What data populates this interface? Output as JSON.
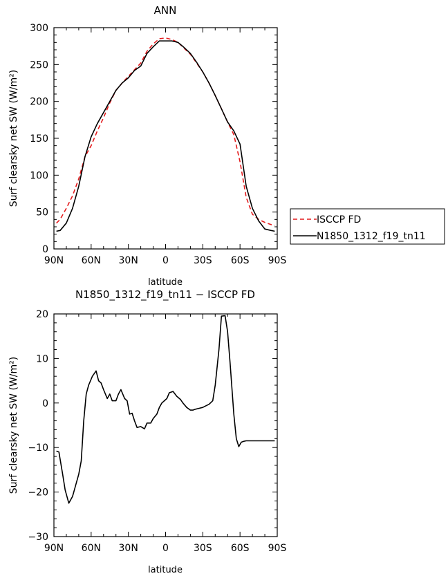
{
  "chart_data": [
    {
      "type": "line",
      "title": "ANN",
      "xlabel": "latitude",
      "ylabel": "Surf clearsky net SW (W/m²)",
      "xlim": [
        90,
        -90
      ],
      "ylim": [
        0,
        300
      ],
      "xticks": [
        90,
        60,
        30,
        0,
        -30,
        -60,
        -90
      ],
      "xtick_labels": [
        "90N",
        "60N",
        "30N",
        "0",
        "30S",
        "60S",
        "90S"
      ],
      "yticks": [
        0,
        50,
        100,
        150,
        200,
        250,
        300
      ],
      "ytick_labels": [
        "0",
        "50",
        "100",
        "150",
        "200",
        "250",
        "300"
      ],
      "legend_position": "right",
      "series": [
        {
          "name": "ISCCP FD",
          "color": "#e41a1c",
          "dash": "dashed",
          "x": [
            88,
            85,
            80,
            75,
            70,
            65,
            60,
            55,
            50,
            45,
            40,
            35,
            30,
            25,
            20,
            15,
            10,
            5,
            0,
            -5,
            -10,
            -15,
            -20,
            -25,
            -30,
            -35,
            -40,
            -45,
            -50,
            -55,
            -60,
            -65,
            -70,
            -75,
            -80,
            -85,
            -88
          ],
          "y": [
            35,
            40,
            55,
            72,
            95,
            125,
            140,
            160,
            178,
            198,
            215,
            225,
            234,
            243,
            252,
            268,
            278,
            285,
            286,
            284,
            280,
            272,
            264,
            252,
            240,
            225,
            208,
            190,
            172,
            155,
            118,
            70,
            47,
            40,
            36,
            33,
            32
          ]
        },
        {
          "name": "N1850_1312_f19_tn11",
          "color": "#000000",
          "dash": "solid",
          "x": [
            88,
            85,
            80,
            75,
            70,
            65,
            60,
            55,
            50,
            45,
            40,
            35,
            30,
            25,
            20,
            15,
            10,
            5,
            0,
            -5,
            -10,
            -15,
            -20,
            -25,
            -30,
            -35,
            -40,
            -45,
            -50,
            -55,
            -60,
            -65,
            -70,
            -75,
            -80,
            -85,
            -88
          ],
          "y": [
            24,
            25,
            35,
            55,
            85,
            125,
            152,
            170,
            185,
            200,
            215,
            225,
            232,
            242,
            248,
            265,
            274,
            282,
            282,
            282,
            280,
            273,
            265,
            253,
            240,
            225,
            208,
            190,
            172,
            160,
            142,
            85,
            55,
            38,
            27,
            25,
            24
          ]
        }
      ]
    },
    {
      "type": "line",
      "title": "N1850_1312_f19_tn11 − ISCCP FD",
      "xlabel": "latitude",
      "ylabel": "Surf clearsky net SW (W/m²)",
      "xlim": [
        90,
        -90
      ],
      "ylim": [
        -30,
        20
      ],
      "xticks": [
        90,
        60,
        30,
        0,
        -30,
        -60,
        -90
      ],
      "xtick_labels": [
        "90N",
        "60N",
        "30N",
        "0",
        "30S",
        "60S",
        "90S"
      ],
      "yticks": [
        -30,
        -20,
        -10,
        0,
        10,
        20
      ],
      "ytick_labels": [
        "−30",
        "−20",
        "−10",
        "0",
        "10",
        "20"
      ],
      "series": [
        {
          "color": "#000000",
          "dash": "solid",
          "x": [
            88,
            86,
            83,
            81,
            78,
            75,
            73,
            70,
            68,
            66,
            64,
            62,
            59,
            56,
            54,
            52,
            50,
            47,
            45,
            43,
            40,
            38,
            36,
            33,
            31,
            29,
            27,
            25,
            23,
            20,
            17,
            15,
            12,
            10,
            7,
            5,
            3,
            1,
            -1,
            -3,
            -6,
            -9,
            -12,
            -14,
            -17,
            -20,
            -22,
            -24,
            -27,
            -30,
            -32,
            -35,
            -38,
            -40,
            -43,
            -45,
            -48,
            -50,
            -52,
            -55,
            -57,
            -59,
            -61,
            -63,
            -65,
            -68,
            -70,
            -72,
            -75,
            -77,
            -80,
            -83,
            -85,
            -88
          ],
          "y": [
            -10.8,
            -11,
            -16,
            -19.5,
            -22.5,
            -21,
            -19,
            -16,
            -13,
            -4,
            2,
            4,
            6,
            7.2,
            5,
            4.5,
            3,
            1,
            2,
            0.5,
            0.5,
            2,
            3,
            1,
            0.5,
            -2.5,
            -2.3,
            -4,
            -5.5,
            -5.3,
            -5.8,
            -4.5,
            -4.5,
            -3.5,
            -2.5,
            -1,
            0,
            0.5,
            1,
            2.3,
            2.6,
            1.5,
            0.8,
            0,
            -1,
            -1.6,
            -1.6,
            -1.4,
            -1.2,
            -1,
            -0.7,
            -0.3,
            0.5,
            4,
            12,
            19.5,
            19.6,
            16,
            9,
            -2.5,
            -8,
            -9.8,
            -8.8,
            -8.6,
            -8.5,
            -8.5,
            -8.5,
            -8.5,
            -8.5,
            -8.5,
            -8.5,
            -8.5,
            -8.5,
            -8.5
          ]
        }
      ]
    }
  ]
}
